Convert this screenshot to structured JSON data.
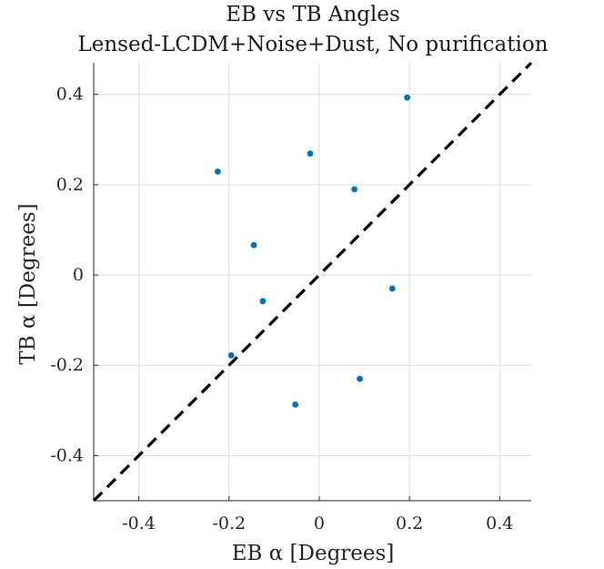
{
  "chart_data": {
    "type": "scatter",
    "title": "EB vs TB Angles",
    "subtitle": "Lensed-LCDM+Noise+Dust, No purification",
    "xlabel": "EB α [Degrees]",
    "ylabel": "TB α [Degrees]",
    "xlim": [
      -0.5,
      0.47
    ],
    "ylim": [
      -0.5,
      0.47
    ],
    "xticks": [
      -0.4,
      -0.2,
      0,
      0.2,
      0.4
    ],
    "xtick_labels": [
      "-0.4",
      "-0.2",
      "0",
      "0.2",
      "0.4"
    ],
    "yticks": [
      -0.4,
      -0.2,
      0,
      0.2,
      0.4
    ],
    "ytick_labels": [
      "-0.4",
      "-0.2",
      "0",
      "0.2",
      "0.4"
    ],
    "grid": true,
    "points": [
      {
        "x": -0.225,
        "y": 0.229
      },
      {
        "x": -0.02,
        "y": 0.269
      },
      {
        "x": 0.195,
        "y": 0.393
      },
      {
        "x": 0.078,
        "y": 0.19
      },
      {
        "x": -0.145,
        "y": 0.066
      },
      {
        "x": -0.125,
        "y": -0.058
      },
      {
        "x": 0.162,
        "y": -0.03
      },
      {
        "x": -0.195,
        "y": -0.178
      },
      {
        "x": 0.09,
        "y": -0.23
      },
      {
        "x": -0.053,
        "y": -0.287
      }
    ],
    "reference_line": {
      "style": "dashed",
      "color": "#000000",
      "from": [
        -0.5,
        -0.5
      ],
      "to": [
        0.47,
        0.47
      ]
    },
    "marker_color": "#0072bd"
  }
}
